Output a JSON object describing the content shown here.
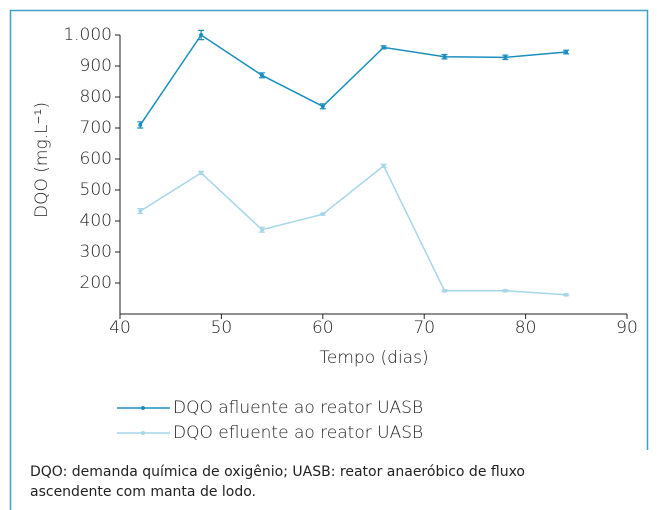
{
  "chart_data": {
    "type": "line",
    "x_label": "Tempo (dias)",
    "y_label": "DQO (mg.L⁻¹)",
    "x": [
      42,
      48,
      54,
      60,
      66,
      72,
      78,
      84
    ],
    "series": [
      {
        "name": "DQO afluente ao reator UASB",
        "color": "#1b8ec0",
        "values": [
          710,
          1000,
          870,
          770,
          960,
          930,
          928,
          945
        ],
        "errors": [
          10,
          15,
          8,
          8,
          5,
          7,
          7,
          6
        ]
      },
      {
        "name": "DQO efluente ao reator UASB",
        "color": "#a6d6e8",
        "values": [
          432,
          555,
          372,
          422,
          578,
          175,
          175,
          162
        ],
        "errors": [
          8,
          5,
          8,
          3,
          5,
          3,
          3,
          3
        ]
      }
    ],
    "xlim": [
      40,
      90
    ],
    "xticks": [
      40,
      50,
      60,
      70,
      80,
      90
    ],
    "ylim": [
      100,
      1000
    ],
    "yticks": [
      200,
      300,
      400,
      500,
      600,
      700,
      800,
      900,
      {
        "value": 1000,
        "label": "1.000"
      }
    ],
    "note": "DQO: demanda química de oxigênio; UASB: reator anaeróbico de fluxo ascendente com manta de lodo."
  }
}
